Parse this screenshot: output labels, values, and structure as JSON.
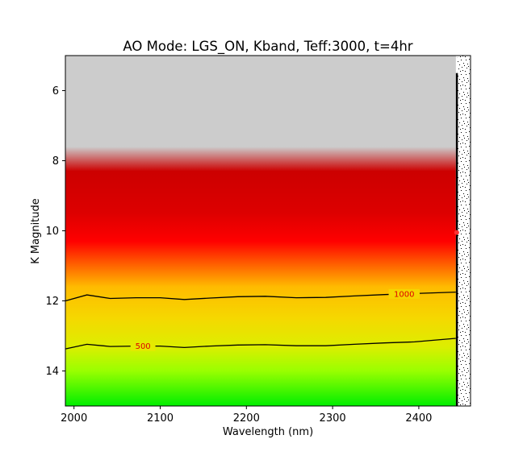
{
  "chart_data": {
    "type": "heatmap",
    "title": "AO Mode: LGS_ON, Kband, Teff:3000, t=4hr",
    "xlabel": "Wavelength (nm)",
    "ylabel": "K Magnitude",
    "xlim": [
      1990,
      2460
    ],
    "ylim": [
      15,
      5
    ],
    "x_ticks": [
      2000,
      2100,
      2200,
      2300,
      2400
    ],
    "y_ticks": [
      6,
      8,
      10,
      12,
      14
    ],
    "data_x_range": [
      1990,
      2443
    ],
    "grid": false,
    "colormap": [
      {
        "mag": 5.0,
        "color": "#cccccc"
      },
      {
        "mag": 7.6,
        "color": "#cccccc"
      },
      {
        "mag": 8.3,
        "color": "#cc0000"
      },
      {
        "mag": 9.5,
        "color": "#dd0000"
      },
      {
        "mag": 10.3,
        "color": "#ff0000"
      },
      {
        "mag": 11.0,
        "color": "#ff6600"
      },
      {
        "mag": 11.6,
        "color": "#ffbb00"
      },
      {
        "mag": 12.5,
        "color": "#f5d800"
      },
      {
        "mag": 13.3,
        "color": "#ddee00"
      },
      {
        "mag": 14.0,
        "color": "#99ff00"
      },
      {
        "mag": 15.0,
        "color": "#00ee00"
      }
    ],
    "contours": [
      {
        "level": "1000",
        "x": [
          1990,
          2015,
          2042,
          2072,
          2100,
          2128,
          2158,
          2190,
          2222,
          2258,
          2292,
          2325,
          2360,
          2395,
          2443
        ],
        "y": [
          12.0,
          11.83,
          11.93,
          11.91,
          11.91,
          11.96,
          11.92,
          11.88,
          11.87,
          11.91,
          11.9,
          11.86,
          11.82,
          11.79,
          11.75
        ],
        "label_x": 2383
      },
      {
        "level": "500",
        "x": [
          1990,
          2015,
          2042,
          2072,
          2100,
          2128,
          2158,
          2190,
          2222,
          2258,
          2292,
          2325,
          2360,
          2395,
          2443
        ],
        "y": [
          13.37,
          13.24,
          13.3,
          13.29,
          13.29,
          13.33,
          13.29,
          13.26,
          13.25,
          13.28,
          13.28,
          13.24,
          13.2,
          13.17,
          13.07
        ],
        "label_x": 2080
      }
    ]
  }
}
